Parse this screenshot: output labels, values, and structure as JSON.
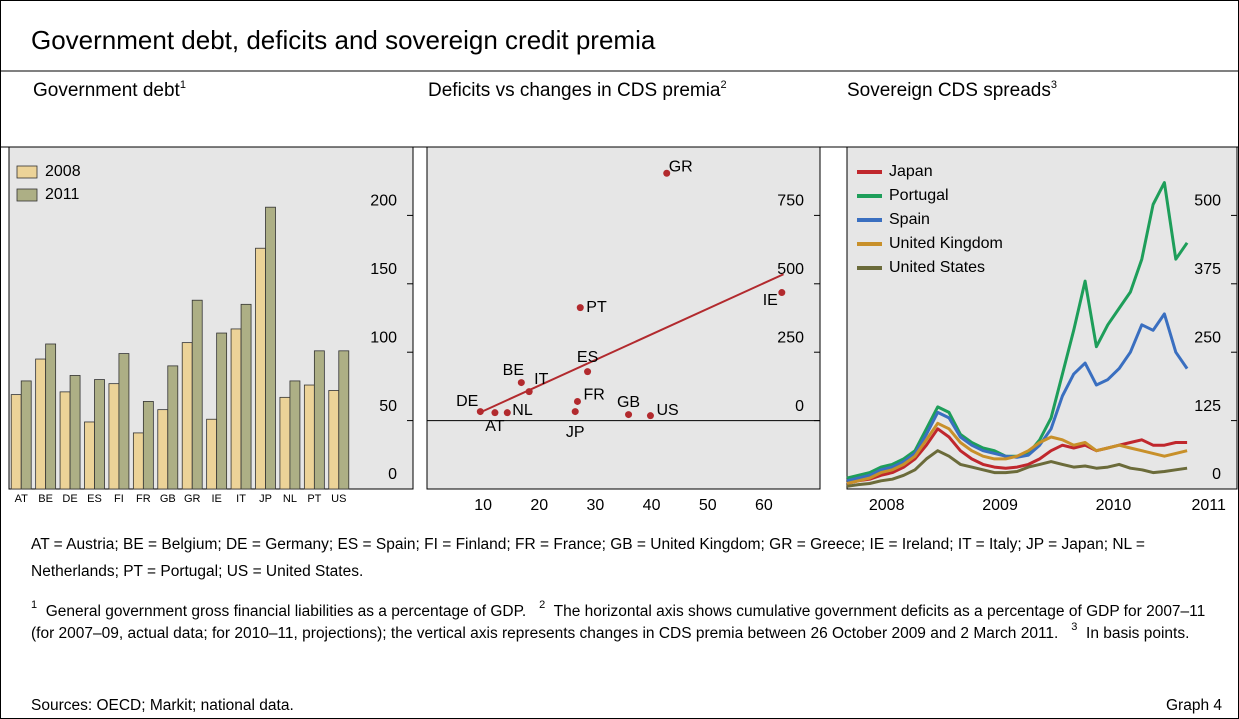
{
  "title": "Government debt, deficits and sovereign credit premia",
  "chart_data": [
    {
      "type": "bar",
      "title": "Government debt",
      "note_ref": "1",
      "categories": [
        "AT",
        "BE",
        "DE",
        "ES",
        "FI",
        "FR",
        "GB",
        "GR",
        "IE",
        "IT",
        "JP",
        "NL",
        "PT",
        "US"
      ],
      "series": [
        {
          "name": "2008",
          "color": "#ecd398",
          "values": [
            69,
            95,
            71,
            49,
            77,
            41,
            58,
            107,
            51,
            117,
            176,
            67,
            76,
            72
          ]
        },
        {
          "name": "2011",
          "color": "#adaf85",
          "values": [
            79,
            106,
            83,
            80,
            99,
            64,
            90,
            138,
            114,
            135,
            206,
            79,
            101,
            101
          ]
        }
      ],
      "ylim": [
        0,
        250
      ],
      "yticks": [
        0,
        50,
        100,
        150,
        200
      ],
      "legend": "top-left"
    },
    {
      "type": "scatter",
      "title": "Deficits vs changes in CDS premia",
      "note_ref": "2",
      "labels": [
        "GR",
        "IE",
        "PT",
        "ES",
        "BE",
        "IT",
        "DE",
        "AT",
        "NL",
        "FR",
        "JP",
        "GB",
        "US"
      ],
      "x": [
        42.7,
        63.2,
        27.3,
        28.6,
        16.8,
        18.2,
        9.5,
        12.1,
        14.3,
        26.8,
        26.4,
        35.9,
        39.8
      ],
      "values": [
        904,
        468,
        413,
        179,
        139,
        106,
        33,
        29,
        29,
        70,
        33,
        22,
        18
      ],
      "color": "#b22a2e",
      "fit": {
        "x": [
          9.5,
          63.5
        ],
        "values": [
          30,
          535
        ]
      },
      "xlim": [
        0,
        70
      ],
      "xticks": [
        10,
        20,
        30,
        40,
        50,
        60
      ],
      "ylim": [
        -250,
        1000
      ],
      "yticks": [
        0,
        250,
        500,
        750
      ]
    },
    {
      "type": "line",
      "title": "Sovereign CDS spreads",
      "note_ref": "3",
      "x": [
        2008.15,
        2008.25,
        2008.35,
        2008.45,
        2008.55,
        2008.65,
        2008.75,
        2008.85,
        2008.95,
        2009.05,
        2009.15,
        2009.25,
        2009.35,
        2009.45,
        2009.55,
        2009.65,
        2009.75,
        2009.85,
        2009.95,
        2010.05,
        2010.15,
        2010.25,
        2010.35,
        2010.45,
        2010.55,
        2010.65,
        2010.75,
        2010.85,
        2010.95,
        2011.05,
        2011.15
      ],
      "series": [
        {
          "name": "Japan",
          "color": "#c0272d",
          "values": [
            10,
            15,
            18,
            25,
            30,
            40,
            55,
            80,
            110,
            95,
            70,
            55,
            45,
            40,
            38,
            40,
            45,
            55,
            70,
            80,
            75,
            80,
            70,
            75,
            80,
            85,
            90,
            80,
            80,
            85,
            85
          ]
        },
        {
          "name": "Portugal",
          "color": "#1e9e5a",
          "values": [
            20,
            25,
            30,
            40,
            45,
            55,
            70,
            110,
            150,
            140,
            100,
            85,
            75,
            70,
            60,
            60,
            65,
            90,
            130,
            210,
            290,
            380,
            260,
            300,
            330,
            360,
            420,
            520,
            560,
            420,
            450
          ]
        },
        {
          "name": "Spain",
          "color": "#3a6fc0",
          "values": [
            15,
            20,
            25,
            35,
            40,
            50,
            65,
            100,
            140,
            130,
            95,
            80,
            70,
            65,
            60,
            58,
            62,
            80,
            110,
            170,
            210,
            230,
            190,
            200,
            220,
            250,
            300,
            290,
            320,
            250,
            220
          ]
        },
        {
          "name": "United Kingdom",
          "color": "#c8902a",
          "values": [
            10,
            15,
            20,
            30,
            35,
            45,
            60,
            90,
            120,
            110,
            85,
            70,
            60,
            55,
            55,
            60,
            70,
            85,
            95,
            90,
            80,
            85,
            70,
            75,
            80,
            75,
            70,
            65,
            60,
            65,
            70
          ]
        },
        {
          "name": "United States",
          "color": "#6b6b3a",
          "values": [
            5,
            8,
            10,
            15,
            18,
            25,
            35,
            55,
            70,
            60,
            45,
            40,
            35,
            30,
            30,
            32,
            40,
            45,
            50,
            45,
            40,
            42,
            38,
            40,
            45,
            38,
            35,
            30,
            32,
            35,
            38
          ]
        }
      ],
      "xlim": [
        2008.15,
        2011.59
      ],
      "xticks": [
        {
          "value": 2008.5,
          "label": "2008"
        },
        {
          "value": 2009.5,
          "label": "2009"
        },
        {
          "value": 2010.5,
          "label": "2010"
        },
        {
          "value": 2011.34,
          "label": "2011"
        }
      ],
      "ylim": [
        0,
        625
      ],
      "yticks": [
        0,
        125,
        250,
        375,
        500
      ],
      "legend": "top-left"
    }
  ],
  "abbreviations": "AT = Austria; BE = Belgium; DE = Germany; ES = Spain; FI = Finland; FR = France; GB = United Kingdom; GR = Greece; IE = Ireland; IT = Italy; JP = Japan; NL = Netherlands; PT = Portugal; US = United States.",
  "footnotes": [
    {
      "ref": "1",
      "text": "General government gross financial liabilities as a percentage of GDP."
    },
    {
      "ref": "2",
      "text": "The horizontal axis shows cumulative government deficits as a percentage of GDP for 2007–11 (for 2007–09, actual data; for 2010–11, projections); the vertical axis represents changes in CDS premia between 26 October 2009 and 2 March 2011."
    },
    {
      "ref": "3",
      "text": "In basis points."
    }
  ],
  "sources": "Sources: OECD; Markit; national data.",
  "graph_label": "Graph 4"
}
